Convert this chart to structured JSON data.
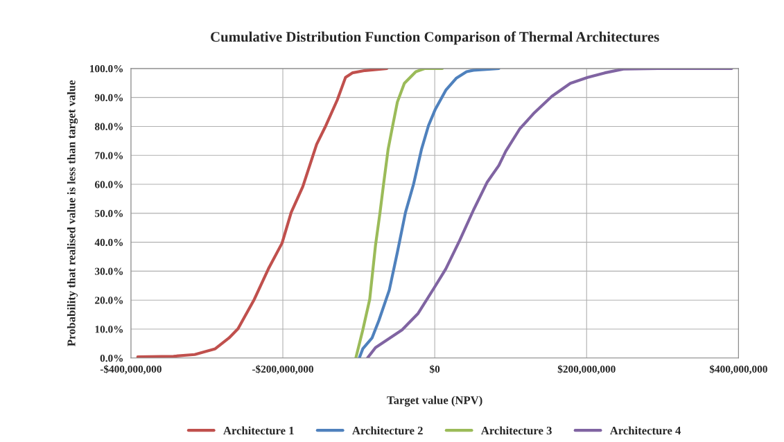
{
  "chart_data": {
    "type": "line",
    "title": "Cumulative Distribution Function Comparison of Thermal Architectures",
    "xlabel": "Target value (NPV)",
    "ylabel": "Probability that realised value is less than target value",
    "xlim": [
      -400000000,
      400000000
    ],
    "xticks": [
      {
        "value": -400000000,
        "label": "-$400,000,000"
      },
      {
        "value": -200000000,
        "label": "-$200,000,000"
      },
      {
        "value": 0,
        "label": "$0"
      },
      {
        "value": 200000000,
        "label": "$200,000,000"
      },
      {
        "value": 400000000,
        "label": "$400,000,000"
      }
    ],
    "ylim": [
      0,
      100
    ],
    "yticks": [
      {
        "value": 0,
        "label": "0.0%"
      },
      {
        "value": 10,
        "label": "10.0%"
      },
      {
        "value": 20,
        "label": "20.0%"
      },
      {
        "value": 30,
        "label": "30.0%"
      },
      {
        "value": 40,
        "label": "40.0%"
      },
      {
        "value": 50,
        "label": "50.0%"
      },
      {
        "value": 60,
        "label": "60.0%"
      },
      {
        "value": 70,
        "label": "70.0%"
      },
      {
        "value": 80,
        "label": "80.0%"
      },
      {
        "value": 90,
        "label": "90.0%"
      },
      {
        "value": 100,
        "label": "100.0%"
      }
    ],
    "grid": true,
    "legend": "bottom",
    "marker": "none",
    "line_style": "solid",
    "series": [
      {
        "name": "Architecture 1",
        "color": "#c0504d",
        "x": [
          -391000000,
          -344000000,
          -316000000,
          -289000000,
          -271000000,
          -259000000,
          -237500000,
          -219000000,
          -201000000,
          -189000000,
          -173700000,
          -164600000,
          -155500000,
          -143300000,
          -128200000,
          -117500000,
          -108400000,
          -91700000,
          -62900000
        ],
        "values": [
          0.4,
          0.6,
          1.2,
          3.2,
          6.9,
          10.1,
          20.3,
          30.8,
          39.7,
          50.3,
          59.2,
          66.5,
          73.8,
          80.3,
          89.2,
          96.9,
          98.5,
          99.3,
          100
        ]
      },
      {
        "name": "Architecture 2",
        "color": "#4f81bd",
        "x": [
          -99300000,
          -94700000,
          -82600000,
          -73500000,
          -59800000,
          -49200000,
          -38500000,
          -27900000,
          -17300000,
          -8200000,
          900000,
          14600000,
          28200000,
          41900000,
          51000000,
          84400000
        ],
        "values": [
          0,
          3.2,
          6.9,
          13,
          23.5,
          36.5,
          50.3,
          60,
          72.2,
          80.3,
          86,
          92.5,
          96.6,
          98.9,
          99.4,
          100
        ]
      },
      {
        "name": "Architecture 3",
        "color": "#9bbb59",
        "x": [
          -103900000,
          -94700000,
          -85600000,
          -78000000,
          -72000000,
          -67400000,
          -61300000,
          -55300000,
          -49200000,
          -40000000,
          -24900000,
          -12800000,
          10000000
        ],
        "values": [
          0,
          9.7,
          20.3,
          38.9,
          50.3,
          60,
          72.2,
          80.3,
          88.4,
          94.9,
          98.9,
          100,
          100
        ]
      },
      {
        "name": "Architecture 4",
        "color": "#8064a2",
        "x": [
          -88600000,
          -78000000,
          -43100000,
          -21900000,
          -600000,
          14600000,
          32800000,
          51000000,
          69200000,
          84400000,
          93500000,
          111800000,
          130000000,
          154200000,
          178600000,
          201300000,
          224000000,
          248400000,
          294000000,
          391000000
        ],
        "values": [
          0,
          3.6,
          9.7,
          15.4,
          24.3,
          30.8,
          40.6,
          51.1,
          60.8,
          66.5,
          71.4,
          79.1,
          84.4,
          90.4,
          94.9,
          96.9,
          98.5,
          99.8,
          100,
          100
        ]
      }
    ]
  }
}
